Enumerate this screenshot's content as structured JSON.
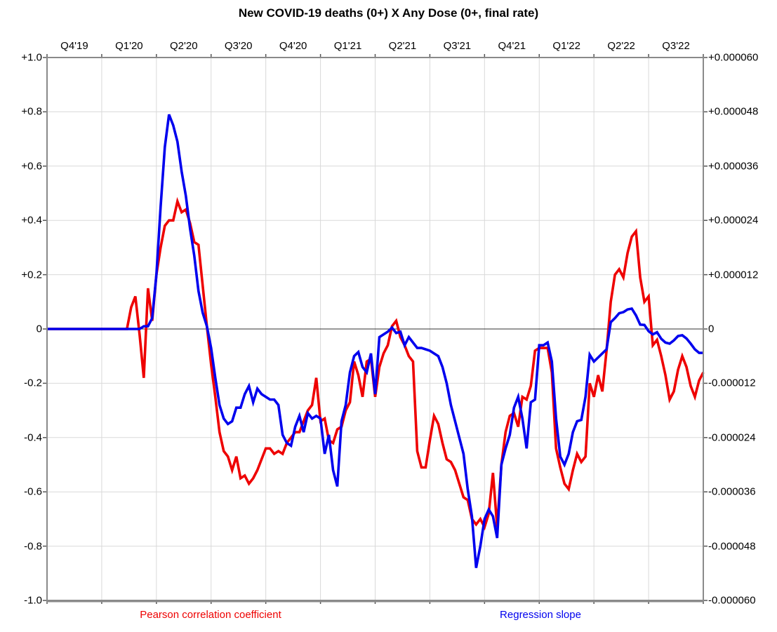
{
  "title": "New COVID-19 deaths (0+) X Any Dose (0+, final rate)",
  "x_axis": {
    "position": "top",
    "labels": [
      "Q4'19",
      "Q1'20",
      "Q2'20",
      "Q3'20",
      "Q4'20",
      "Q1'21",
      "Q2'21",
      "Q3'21",
      "Q4'21",
      "Q1'22",
      "Q2'22",
      "Q3'22"
    ]
  },
  "y_axis_left": {
    "ticks": [
      "+1.0",
      "+0.8",
      "+0.6",
      "+0.4",
      "+0.2",
      "0",
      "-0.2",
      "-0.4",
      "-0.6",
      "-0.8",
      "-1.0"
    ],
    "min": -1.0,
    "max": 1.0
  },
  "y_axis_right": {
    "ticks": [
      "+0.000060",
      "+0.000048",
      "+0.000036",
      "+0.000024",
      "+0.000012",
      "0",
      "-0.000012",
      "-0.000024",
      "-0.000036",
      "-0.000048",
      "-0.000060"
    ],
    "min": -6e-05,
    "max": 6e-05
  },
  "legend": [
    {
      "label": "Pearson correlation coefficient",
      "color": "#ee0000"
    },
    {
      "label": "Regression slope",
      "color": "#0000ee"
    }
  ],
  "colors": {
    "grid": "#d9d9d9",
    "border": "#8a8a8a",
    "zero_line": "#303030",
    "red_series": "#ee0000",
    "blue_series": "#0000ee"
  },
  "chart_data": {
    "type": "line",
    "title": "New COVID-19 deaths (0+) X Any Dose (0+, final rate)",
    "x_unit": "week",
    "x_span_quarters": [
      "Q4'19",
      "Q3'22"
    ],
    "grid": true,
    "legend_position": "bottom",
    "left_axis_range": [
      -1.0,
      1.0
    ],
    "right_axis_range": [
      -6e-05,
      6e-05
    ],
    "right_axis_value_of_left_unit": 6e-05,
    "series": [
      {
        "name": "Pearson correlation coefficient",
        "axis": "left",
        "color": "#ee0000",
        "values": [
          0,
          0,
          0,
          0,
          0,
          0,
          0,
          0,
          0,
          0,
          0,
          0,
          0,
          0,
          0,
          0,
          0,
          0,
          0,
          0,
          0.08,
          0.12,
          -0.02,
          -0.18,
          0.15,
          0.03,
          0.2,
          0.3,
          0.38,
          0.4,
          0.4,
          0.47,
          0.43,
          0.44,
          0.39,
          0.32,
          0.31,
          0.16,
          0.01,
          -0.13,
          -0.25,
          -0.38,
          -0.45,
          -0.47,
          -0.52,
          -0.47,
          -0.55,
          -0.54,
          -0.57,
          -0.55,
          -0.52,
          -0.48,
          -0.44,
          -0.44,
          -0.46,
          -0.45,
          -0.46,
          -0.42,
          -0.4,
          -0.38,
          -0.38,
          -0.34,
          -0.3,
          -0.28,
          -0.18,
          -0.34,
          -0.33,
          -0.41,
          -0.42,
          -0.37,
          -0.36,
          -0.3,
          -0.27,
          -0.12,
          -0.17,
          -0.25,
          -0.12,
          -0.11,
          -0.25,
          -0.14,
          -0.09,
          -0.06,
          0.01,
          0.03,
          -0.03,
          -0.06,
          -0.1,
          -0.12,
          -0.45,
          -0.51,
          -0.51,
          -0.41,
          -0.32,
          -0.35,
          -0.42,
          -0.48,
          -0.49,
          -0.52,
          -0.57,
          -0.62,
          -0.63,
          -0.7,
          -0.72,
          -0.7,
          -0.73,
          -0.68,
          -0.53,
          -0.73,
          -0.5,
          -0.38,
          -0.32,
          -0.31,
          -0.36,
          -0.25,
          -0.26,
          -0.21,
          -0.08,
          -0.07,
          -0.07,
          -0.07,
          -0.16,
          -0.44,
          -0.51,
          -0.57,
          -0.59,
          -0.52,
          -0.46,
          -0.49,
          -0.47,
          -0.2,
          -0.25,
          -0.17,
          -0.23,
          -0.08,
          0.1,
          0.2,
          0.22,
          0.19,
          0.28,
          0.34,
          0.36,
          0.19,
          0.1,
          0.12,
          -0.06,
          -0.04,
          -0.1,
          -0.17,
          -0.26,
          -0.23,
          -0.15,
          -0.1,
          -0.14,
          -0.21,
          -0.25,
          -0.19,
          -0.16
        ]
      },
      {
        "name": "Regression slope",
        "axis": "right",
        "color": "#0000ee",
        "values": [
          0,
          0,
          0,
          0,
          0,
          0,
          0,
          0,
          0,
          0,
          0,
          0,
          0,
          0,
          0,
          0,
          0,
          0,
          0,
          0,
          0,
          0,
          0,
          0.01,
          0.01,
          0.04,
          0.2,
          0.45,
          0.67,
          0.79,
          0.75,
          0.69,
          0.58,
          0.49,
          0.37,
          0.27,
          0.14,
          0.06,
          0.01,
          -0.07,
          -0.18,
          -0.28,
          -0.33,
          -0.35,
          -0.34,
          -0.29,
          -0.29,
          -0.24,
          -0.21,
          -0.27,
          -0.22,
          -0.24,
          -0.25,
          -0.26,
          -0.26,
          -0.28,
          -0.39,
          -0.42,
          -0.43,
          -0.36,
          -0.32,
          -0.38,
          -0.31,
          -0.33,
          -0.32,
          -0.33,
          -0.46,
          -0.39,
          -0.52,
          -0.58,
          -0.34,
          -0.28,
          -0.16,
          -0.1,
          -0.085,
          -0.14,
          -0.16,
          -0.09,
          -0.24,
          -0.03,
          -0.02,
          -0.01,
          0.005,
          -0.015,
          -0.01,
          -0.06,
          -0.03,
          -0.05,
          -0.07,
          -0.07,
          -0.075,
          -0.08,
          -0.09,
          -0.1,
          -0.14,
          -0.2,
          -0.28,
          -0.34,
          -0.4,
          -0.46,
          -0.59,
          -0.69,
          -0.88,
          -0.8,
          -0.7,
          -0.665,
          -0.69,
          -0.77,
          -0.5,
          -0.44,
          -0.39,
          -0.29,
          -0.25,
          -0.33,
          -0.44,
          -0.27,
          -0.26,
          -0.06,
          -0.06,
          -0.05,
          -0.12,
          -0.33,
          -0.47,
          -0.5,
          -0.46,
          -0.38,
          -0.34,
          -0.335,
          -0.25,
          -0.095,
          -0.12,
          -0.105,
          -0.09,
          -0.075,
          0.025,
          0.04,
          0.058,
          0.062,
          0.072,
          0.075,
          0.05,
          0.016,
          0.015,
          -0.008,
          -0.02,
          -0.012,
          -0.036,
          -0.05,
          -0.054,
          -0.042,
          -0.026,
          -0.023,
          -0.035,
          -0.054,
          -0.075,
          -0.088,
          -0.088
        ]
      }
    ]
  }
}
